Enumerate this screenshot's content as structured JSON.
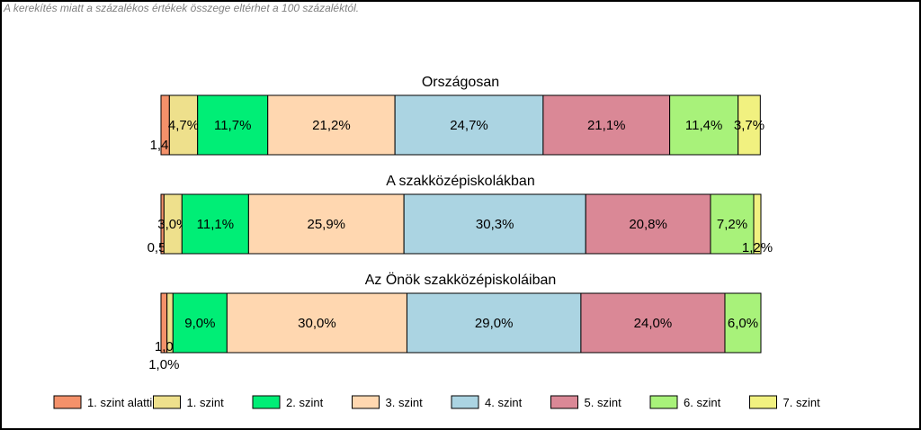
{
  "note": "A kerekítés miatt a  százalékos értékek összege eltérhet a 100 százaléktól.",
  "chart_data": {
    "type": "bar",
    "orientation": "horizontal-stacked-100",
    "categories": [
      "Országosan",
      "A szakközépiskolákban",
      "Az Önök szakközépiskoláiban"
    ],
    "series": [
      {
        "name": "1. szint alatti",
        "color": "#F4916A",
        "values": [
          1.4,
          0.5,
          1.0
        ],
        "labels": [
          "1,4%",
          "0,5%",
          "1,0%"
        ]
      },
      {
        "name": "1. szint",
        "color": "#EEE08C",
        "values": [
          4.7,
          3.0,
          1.0
        ],
        "labels": [
          "4,7%",
          "3,0%",
          "1,0%"
        ]
      },
      {
        "name": "2. szint",
        "color": "#00EE76",
        "values": [
          11.7,
          11.1,
          9.0
        ],
        "labels": [
          "11,7%",
          "11,1%",
          "9,0%"
        ]
      },
      {
        "name": "3. szint",
        "color": "#FFD7B0",
        "values": [
          21.2,
          25.9,
          30.0
        ],
        "labels": [
          "21,2%",
          "25,9%",
          "30,0%"
        ]
      },
      {
        "name": "4. szint",
        "color": "#ABD4E2",
        "values": [
          24.7,
          30.3,
          29.0
        ],
        "labels": [
          "24,7%",
          "30,3%",
          "29,0%"
        ]
      },
      {
        "name": "5. szint",
        "color": "#DA8896",
        "values": [
          21.1,
          20.8,
          24.0
        ],
        "labels": [
          "21,1%",
          "20,8%",
          "24,0%"
        ]
      },
      {
        "name": "6. szint",
        "color": "#A8F27A",
        "values": [
          11.4,
          7.2,
          6.0
        ],
        "labels": [
          "11,4%",
          "7,2%",
          "6,0%"
        ]
      },
      {
        "name": "7. szint",
        "color": "#F1F180",
        "values": [
          3.7,
          1.2,
          0
        ],
        "labels": [
          "3,7%",
          "1,2%",
          ""
        ]
      }
    ],
    "legend": "bottom"
  }
}
